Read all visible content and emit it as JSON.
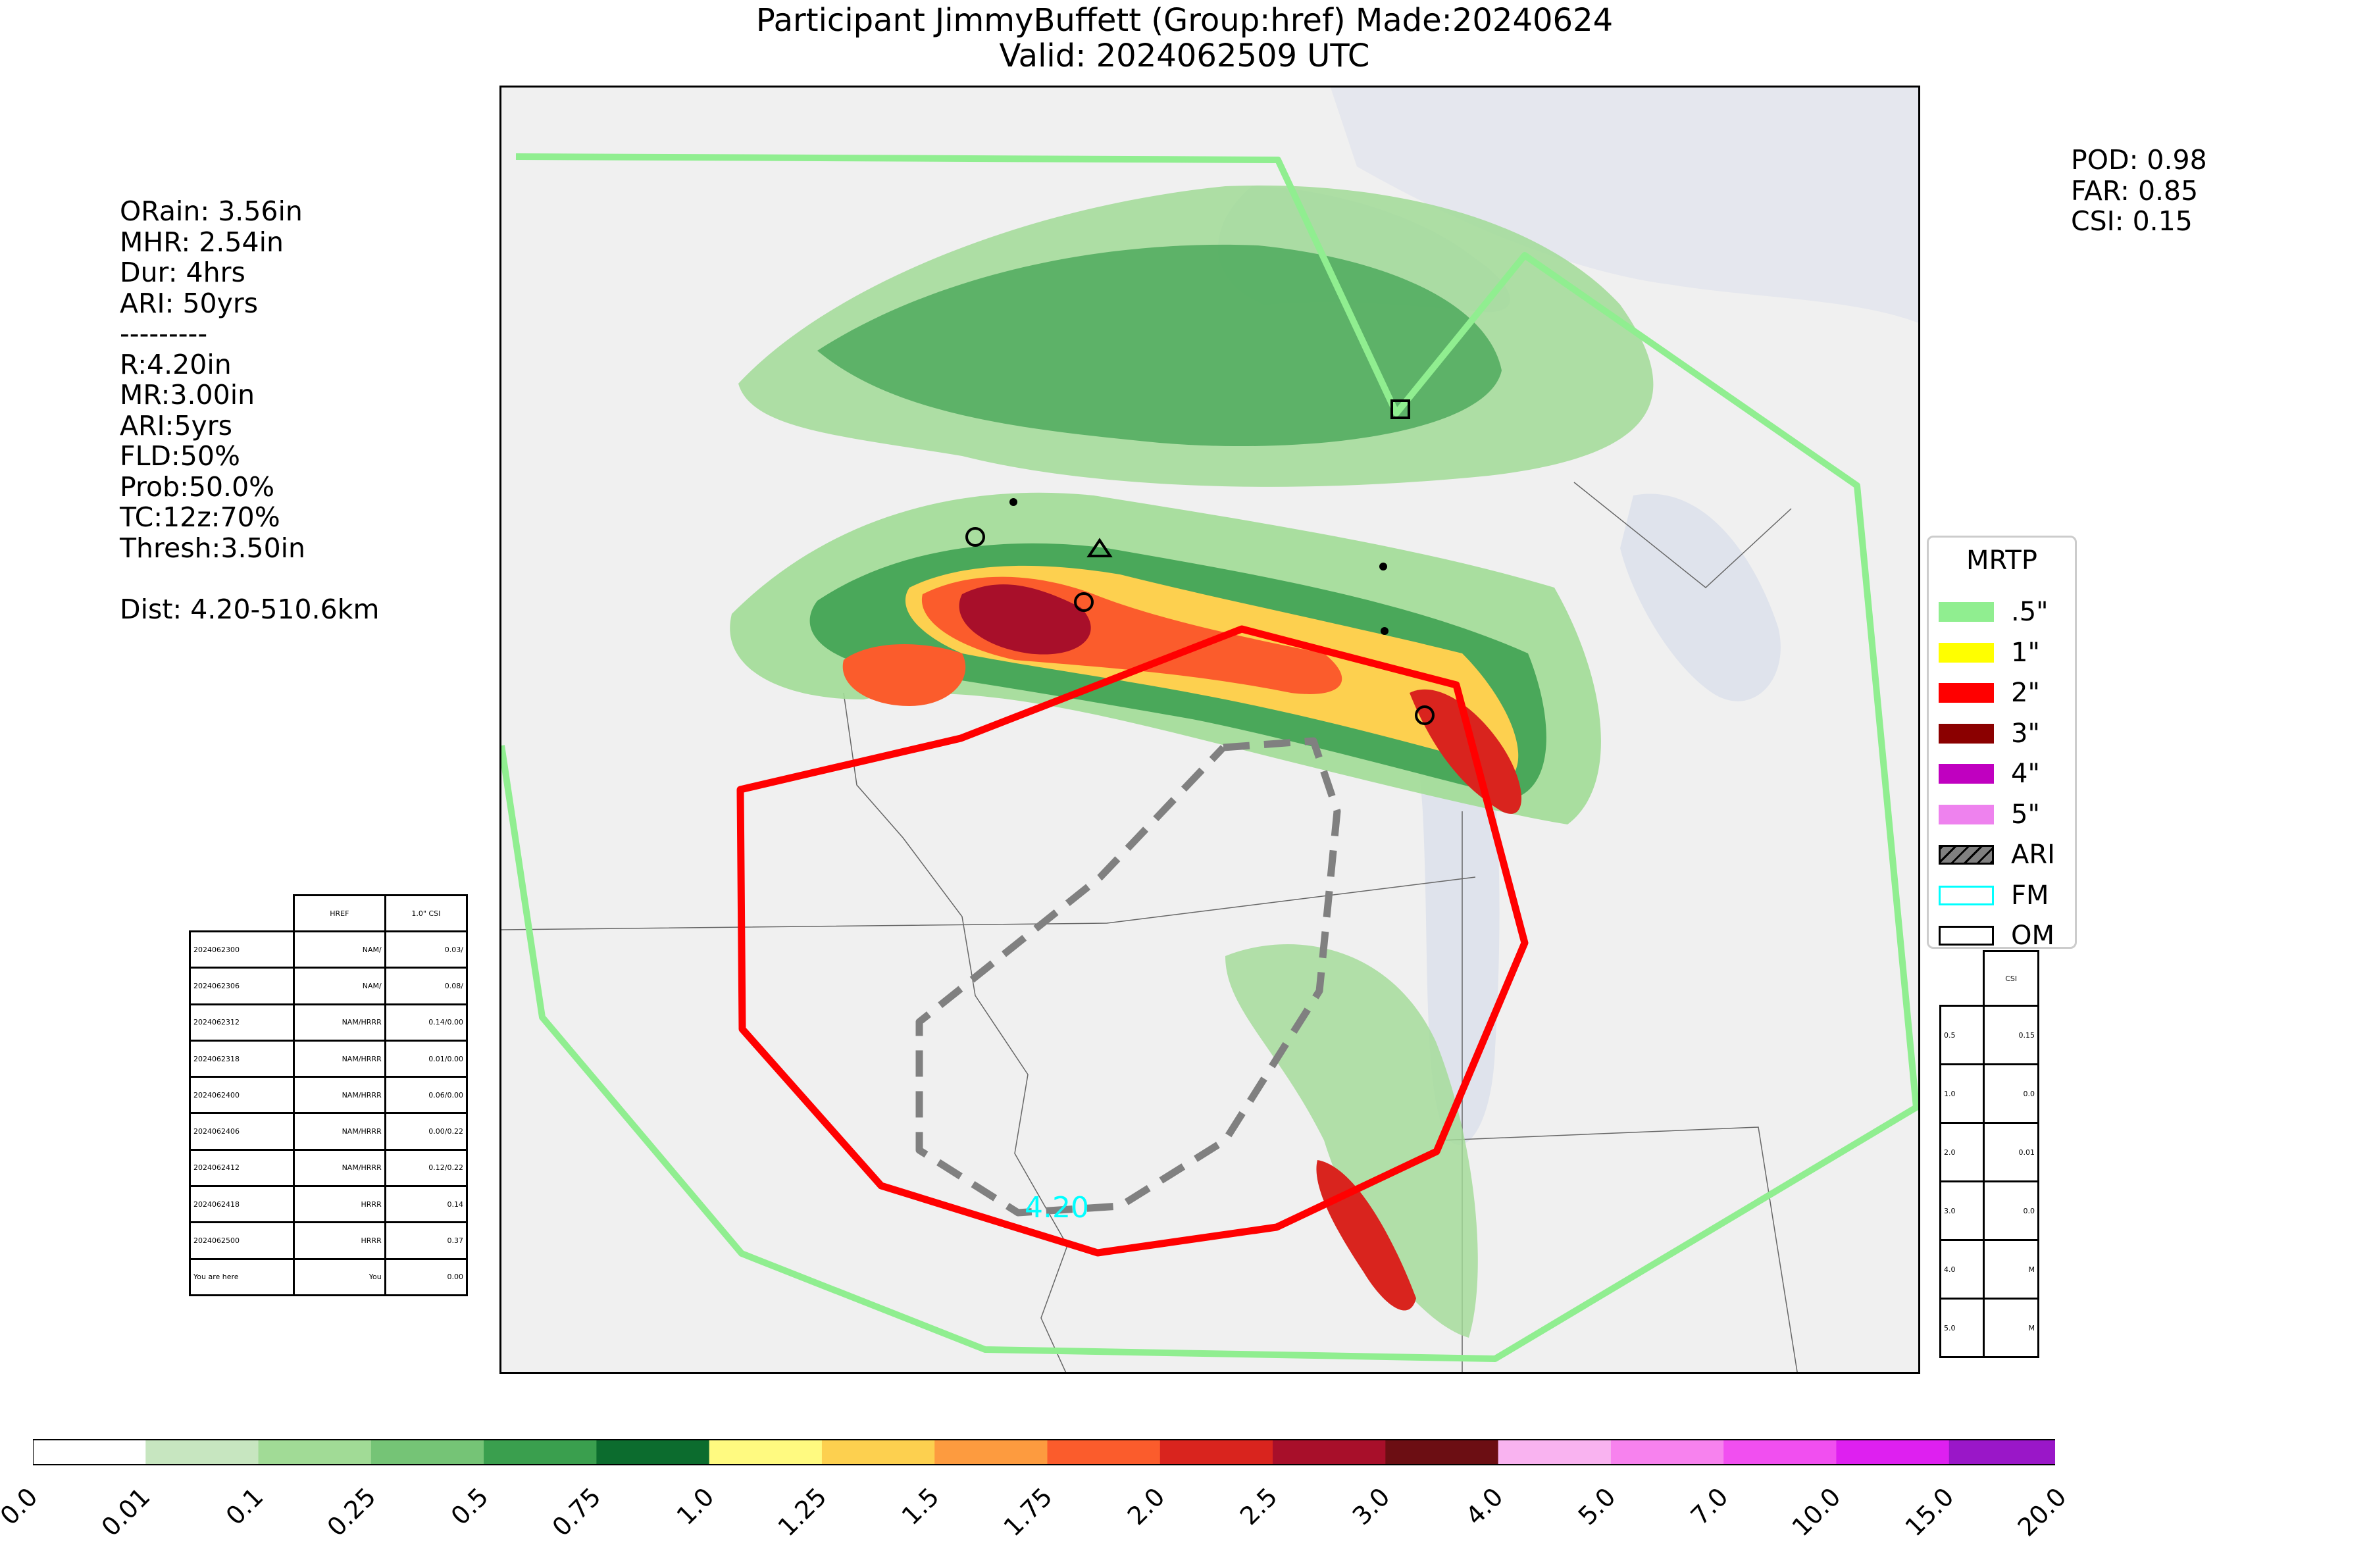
{
  "title": {
    "line1": "Participant JimmyBuffett (Group:href) Made:20240624",
    "line2": "Valid: 2024062509 UTC"
  },
  "left_stats": {
    "lines": [
      "ORain: 3.56in",
      "MHR: 2.54in",
      "Dur: 4hrs",
      "ARI: 50yrs",
      "---------",
      "R:4.20in",
      "MR:3.00in",
      "ARI:5yrs",
      "FLD:50%",
      "Prob:50.0%",
      "TC:12z:70%",
      "Thresh:3.50in",
      "",
      "Dist: 4.20-510.6km"
    ]
  },
  "right_stats": {
    "lines": [
      "POD: 0.98",
      "FAR: 0.85",
      "CSI: 0.15"
    ]
  },
  "map": {
    "contour_label": "4.20",
    "outline_colors": {
      "mrtp_half_inch": "#90ee90",
      "mrtp_2_inch": "#ff0000",
      "ari": "#808080",
      "fm": "#00ffff"
    }
  },
  "legend": {
    "title": "MRTP",
    "items": [
      {
        "label": ".5\"",
        "color": "#90ee90",
        "style": "fill"
      },
      {
        "label": "1\"",
        "color": "#ffff00",
        "style": "fill"
      },
      {
        "label": "2\"",
        "color": "#ff0000",
        "style": "fill"
      },
      {
        "label": "3\"",
        "color": "#8b0000",
        "style": "fill"
      },
      {
        "label": "4\"",
        "color": "#c000c0",
        "style": "fill"
      },
      {
        "label": "5\"",
        "color": "#ee82ee",
        "style": "fill"
      },
      {
        "label": "ARI",
        "color": "#808080",
        "style": "hatch"
      },
      {
        "label": "FM",
        "color": "#00ffff",
        "style": "outline"
      },
      {
        "label": "OM",
        "color": "#000000",
        "style": "outline"
      }
    ]
  },
  "left_table": {
    "headers": [
      "",
      "HREF",
      "1.0\" CSI"
    ],
    "rows": [
      [
        "2024062300",
        "NAM/",
        "0.03/"
      ],
      [
        "2024062306",
        "NAM/",
        "0.08/"
      ],
      [
        "2024062312",
        "NAM/HRRR",
        "0.14/0.00"
      ],
      [
        "2024062318",
        "NAM/HRRR",
        "0.01/0.00"
      ],
      [
        "2024062400",
        "NAM/HRRR",
        "0.06/0.00"
      ],
      [
        "2024062406",
        "NAM/HRRR",
        "0.00/0.22"
      ],
      [
        "2024062412",
        "NAM/HRRR",
        "0.12/0.22"
      ],
      [
        "2024062418",
        "HRRR",
        "0.14"
      ],
      [
        "2024062500",
        "HRRR",
        "0.37"
      ],
      [
        "You are here",
        "You",
        "0.00"
      ]
    ]
  },
  "right_table": {
    "headers": [
      "",
      "CSI"
    ],
    "rows": [
      [
        "0.5",
        "0.15"
      ],
      [
        "1.0",
        "0.0"
      ],
      [
        "2.0",
        "0.01"
      ],
      [
        "3.0",
        "0.0"
      ],
      [
        "4.0",
        "M"
      ],
      [
        "5.0",
        "M"
      ]
    ]
  },
  "colorbar": {
    "ticks": [
      "0.0",
      "0.01",
      "0.1",
      "0.25",
      "0.5",
      "0.75",
      "1.0",
      "1.25",
      "1.5",
      "1.75",
      "2.0",
      "2.5",
      "3.0",
      "4.0",
      "5.0",
      "7.0",
      "10.0",
      "15.0",
      "20.0"
    ],
    "colors": [
      "#ffffff",
      "#c7e6c0",
      "#a1db96",
      "#75c476",
      "#3a9f4e",
      "#0c6c2e",
      "#fffa80",
      "#fdd04f",
      "#fd9b3f",
      "#fb5c2c",
      "#d9241e",
      "#a80f2a",
      "#6c0e13",
      "#f9b3f0",
      "#f782ee",
      "#f14ff0",
      "#de20f0",
      "#9a17c8"
    ]
  }
}
